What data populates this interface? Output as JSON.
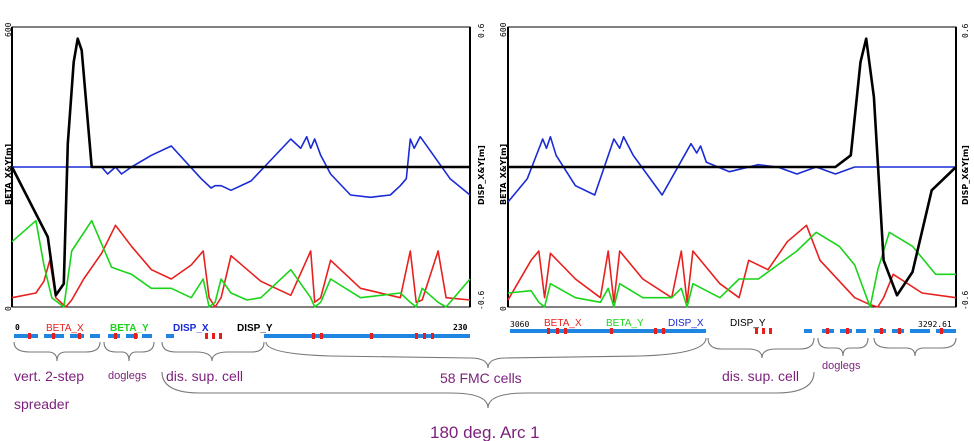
{
  "figure": {
    "title": "180 deg. Arc 1",
    "annotations": {
      "vert_spreader_line1": "vert. 2-step",
      "vert_spreader_line2": "spreader",
      "doglegs_left": "doglegs",
      "dis_sup_left": "dis. sup. cell",
      "fmc_cells": "58 FMC cells",
      "dis_sup_right": "dis. sup. cell",
      "doglegs_right": "doglegs"
    }
  },
  "colors": {
    "beta_x": "#e8201e",
    "beta_y": "#19d419",
    "disp_x": "#1a2bd6",
    "disp_y": "#000000",
    "magnet_bar": "#1e86e0",
    "magnet_tick": "#e81e1e"
  },
  "chart_data": [
    {
      "type": "line",
      "name": "left-panel",
      "xlabel_start": "0",
      "xlabel_end": "230",
      "x_range": [
        0,
        230
      ],
      "ylabel_left": "BETA_X&Y[m]",
      "ylabel_right": "DISP_X&Y[m]",
      "y_left_ticks": [
        "0",
        "600"
      ],
      "y_left_range": [
        0,
        600
      ],
      "y_right_ticks": [
        "-0.6",
        "0.6"
      ],
      "y_right_range": [
        -0.6,
        0.6
      ],
      "legend": [
        "BETA_X",
        "BETA_Y",
        "DISP_X",
        "DISP_Y"
      ],
      "series": [
        {
          "name": "BETA_X",
          "x": [
            0,
            12,
            16,
            19,
            22,
            27,
            30,
            36,
            45,
            52,
            60,
            70,
            80,
            90,
            96,
            99,
            102,
            105,
            110,
            125,
            140,
            150,
            152,
            155,
            160,
            175,
            195,
            200,
            203,
            206,
            214,
            218,
            230
          ],
          "y": [
            20,
            30,
            55,
            100,
            20,
            0,
            15,
            60,
            115,
            175,
            130,
            80,
            60,
            90,
            120,
            20,
            0,
            20,
            110,
            55,
            25,
            120,
            10,
            20,
            100,
            40,
            20,
            120,
            10,
            15,
            120,
            20,
            15
          ]
        },
        {
          "name": "BETA_Y",
          "x": [
            0,
            12,
            16,
            20,
            26,
            30,
            40,
            50,
            60,
            70,
            80,
            90,
            96,
            99,
            102,
            105,
            110,
            118,
            125,
            140,
            150,
            152,
            155,
            160,
            175,
            195,
            200,
            203,
            206,
            214,
            218,
            230
          ],
          "y": [
            140,
            185,
            90,
            20,
            0,
            120,
            185,
            85,
            70,
            40,
            40,
            20,
            60,
            0,
            10,
            60,
            30,
            15,
            20,
            80,
            20,
            0,
            10,
            60,
            20,
            30,
            10,
            0,
            40,
            10,
            0,
            60
          ]
        },
        {
          "name": "DISP_X",
          "x": [
            0,
            45,
            48,
            52,
            55,
            60,
            70,
            80,
            95,
            100,
            102,
            105,
            110,
            120,
            130,
            140,
            145,
            148,
            150,
            152,
            155,
            160,
            170,
            180,
            190,
            195,
            198,
            200,
            202,
            205,
            210,
            220,
            230
          ],
          "y": [
            0,
            0,
            -0.03,
            0,
            -0.03,
            0,
            0.05,
            0.09,
            -0.05,
            -0.09,
            -0.08,
            -0.08,
            -0.1,
            -0.06,
            0.03,
            0.12,
            0.08,
            0.13,
            0.08,
            0.12,
            0.05,
            -0.03,
            -0.12,
            -0.13,
            -0.12,
            -0.08,
            -0.05,
            0.12,
            0.08,
            0.13,
            0.07,
            -0.05,
            -0.12
          ]
        },
        {
          "name": "DISP_Y",
          "x": [
            0,
            18,
            22,
            26,
            28,
            31,
            33,
            35,
            40,
            230
          ],
          "y": [
            0,
            -0.3,
            -0.55,
            -0.5,
            0.1,
            0.45,
            0.55,
            0.5,
            0,
            0
          ]
        }
      ]
    },
    {
      "type": "line",
      "name": "right-panel",
      "xlabel_start": "3060",
      "xlabel_end": "3292.61",
      "x_range": [
        3060,
        3292.61
      ],
      "ylabel_left": "BETA_X&Y[m]",
      "ylabel_right": "DISP_X&Y[m]",
      "y_left_ticks": [
        "0",
        "600"
      ],
      "y_left_range": [
        0,
        600
      ],
      "y_right_ticks": [
        "-0.6",
        "0.6"
      ],
      "y_right_range": [
        -0.6,
        0.6
      ],
      "legend": [
        "BETA_X",
        "BETA_Y",
        "DISP_X",
        "DISP_Y"
      ],
      "series": [
        {
          "name": "BETA_X",
          "x": [
            3060,
            3072,
            3076,
            3079,
            3082,
            3095,
            3108,
            3112,
            3115,
            3118,
            3130,
            3145,
            3150,
            3153,
            3156,
            3170,
            3180,
            3185,
            3195,
            3205,
            3215,
            3222,
            3240,
            3248,
            3252,
            3255,
            3260,
            3275,
            3292.61
          ],
          "y": [
            15,
            100,
            120,
            20,
            115,
            60,
            20,
            120,
            10,
            120,
            60,
            20,
            120,
            10,
            120,
            50,
            20,
            100,
            80,
            140,
            175,
            100,
            20,
            5,
            0,
            20,
            70,
            30,
            20
          ]
        },
        {
          "name": "BETA_Y",
          "x": [
            3060,
            3072,
            3076,
            3079,
            3082,
            3095,
            3108,
            3112,
            3115,
            3118,
            3130,
            3145,
            3150,
            3153,
            3156,
            3170,
            3180,
            3190,
            3200,
            3210,
            3220,
            3232,
            3240,
            3248,
            3252,
            3258,
            3270,
            3282,
            3292.61
          ],
          "y": [
            30,
            35,
            10,
            0,
            50,
            20,
            10,
            40,
            0,
            50,
            20,
            20,
            40,
            0,
            50,
            20,
            60,
            60,
            90,
            120,
            160,
            130,
            90,
            0,
            80,
            160,
            130,
            70,
            70
          ]
        },
        {
          "name": "DISP_X",
          "x": [
            3060,
            3070,
            3078,
            3080,
            3082,
            3085,
            3095,
            3105,
            3115,
            3118,
            3120,
            3125,
            3140,
            3155,
            3158,
            3160,
            3163,
            3175,
            3190,
            3200,
            3210,
            3220,
            3230,
            3240,
            3250,
            3260,
            3292.61
          ],
          "y": [
            -0.15,
            -0.05,
            0.12,
            0.08,
            0.13,
            0.05,
            -0.08,
            -0.12,
            0.12,
            0.08,
            0.13,
            0.05,
            -0.12,
            0.1,
            0.06,
            0.09,
            0.02,
            -0.02,
            0.01,
            0,
            -0.03,
            0,
            -0.03,
            0,
            0,
            0,
            0
          ]
        },
        {
          "name": "DISP_Y",
          "x": [
            3060,
            3230,
            3238,
            3243,
            3246,
            3250,
            3255,
            3262,
            3270,
            3280,
            3292.61
          ],
          "y": [
            0,
            0,
            0.05,
            0.45,
            0.55,
            0.3,
            -0.4,
            -0.55,
            -0.45,
            -0.1,
            0
          ]
        }
      ]
    }
  ]
}
